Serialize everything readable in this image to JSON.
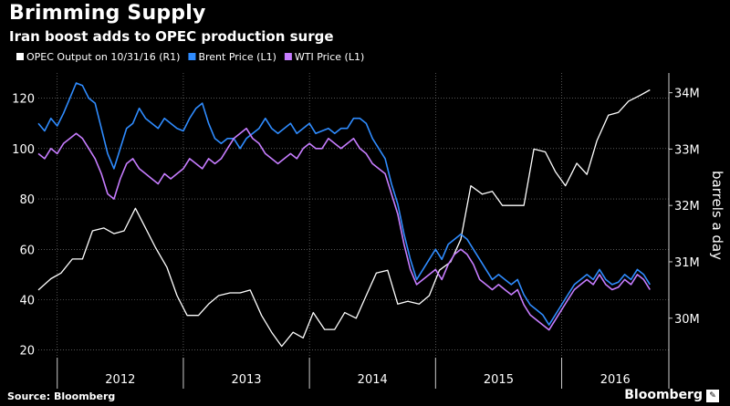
{
  "header": {
    "title": "Brimming Supply",
    "subtitle": "Iran boost adds to OPEC production surge"
  },
  "footer": {
    "source": "Source: Bloomberg",
    "brand": "Bloomberg"
  },
  "colors": {
    "background": "#000000",
    "opec": "#ffffff",
    "brent": "#2f8cff",
    "wti": "#c77dff",
    "grid": "#8a8a8a",
    "text": "#ffffff"
  },
  "chart_data": {
    "type": "line",
    "title": "Brimming Supply",
    "subtitle": "Iran boost adds to OPEC production surge",
    "legend_position": "top-left",
    "grid": true,
    "x_axis": {
      "range": [
        2011.85,
        2016.85
      ],
      "year_labels": [
        "2012",
        "2013",
        "2014",
        "2015",
        "2016"
      ]
    },
    "y_left": {
      "range": [
        17,
        130
      ],
      "ticks": [
        20,
        40,
        60,
        80,
        100,
        120
      ]
    },
    "y_right": {
      "label": "barrels a day",
      "range": [
        29.3,
        34.35
      ],
      "ticks": [
        30,
        31,
        32,
        33,
        34
      ],
      "tick_labels": [
        "30M",
        "31M",
        "32M",
        "33M",
        "34M"
      ]
    },
    "series": [
      {
        "name": "OPEC Output on 10/31/16 (R1)",
        "axis": "right",
        "color": "#ffffff",
        "x": [
          2011.85,
          2011.95,
          2012.03,
          2012.12,
          2012.2,
          2012.28,
          2012.37,
          2012.45,
          2012.53,
          2012.62,
          2012.7,
          2012.78,
          2012.87,
          2012.95,
          2013.03,
          2013.12,
          2013.2,
          2013.28,
          2013.37,
          2013.45,
          2013.53,
          2013.62,
          2013.7,
          2013.78,
          2013.87,
          2013.95,
          2014.03,
          2014.12,
          2014.2,
          2014.28,
          2014.37,
          2014.45,
          2014.53,
          2014.62,
          2014.7,
          2014.78,
          2014.87,
          2014.95,
          2015.03,
          2015.12,
          2015.2,
          2015.28,
          2015.37,
          2015.45,
          2015.53,
          2015.62,
          2015.7,
          2015.78,
          2015.87,
          2015.95,
          2016.03,
          2016.12,
          2016.2,
          2016.28,
          2016.37,
          2016.45,
          2016.53,
          2016.62,
          2016.7
        ],
        "values": [
          30.5,
          30.7,
          30.8,
          31.05,
          31.05,
          31.55,
          31.6,
          31.5,
          31.55,
          31.95,
          31.6,
          31.25,
          30.9,
          30.4,
          30.05,
          30.05,
          30.25,
          30.4,
          30.45,
          30.45,
          30.5,
          30.05,
          29.75,
          29.5,
          29.75,
          29.65,
          30.1,
          29.8,
          29.8,
          30.1,
          30.0,
          30.4,
          30.8,
          30.85,
          30.25,
          30.3,
          30.25,
          30.4,
          30.85,
          31.0,
          31.4,
          32.35,
          32.2,
          32.25,
          32.0,
          32.0,
          32.0,
          33.0,
          32.95,
          32.6,
          32.35,
          32.75,
          32.55,
          33.15,
          33.6,
          33.65,
          33.85,
          33.95,
          34.05
        ]
      },
      {
        "name": "Brent Price (L1)",
        "axis": "left",
        "color": "#2f8cff",
        "x": [
          2011.85,
          2011.9,
          2011.95,
          2012.0,
          2012.05,
          2012.1,
          2012.15,
          2012.2,
          2012.25,
          2012.3,
          2012.35,
          2012.4,
          2012.45,
          2012.5,
          2012.55,
          2012.6,
          2012.65,
          2012.7,
          2012.75,
          2012.8,
          2012.85,
          2012.9,
          2012.95,
          2013.0,
          2013.05,
          2013.1,
          2013.15,
          2013.2,
          2013.25,
          2013.3,
          2013.35,
          2013.4,
          2013.45,
          2013.5,
          2013.55,
          2013.6,
          2013.65,
          2013.7,
          2013.75,
          2013.8,
          2013.85,
          2013.9,
          2013.95,
          2014.0,
          2014.05,
          2014.1,
          2014.15,
          2014.2,
          2014.25,
          2014.3,
          2014.35,
          2014.4,
          2014.45,
          2014.5,
          2014.55,
          2014.6,
          2014.65,
          2014.7,
          2014.75,
          2014.8,
          2014.85,
          2014.9,
          2014.95,
          2015.0,
          2015.05,
          2015.1,
          2015.15,
          2015.2,
          2015.25,
          2015.3,
          2015.35,
          2015.4,
          2015.45,
          2015.5,
          2015.55,
          2015.6,
          2015.65,
          2015.7,
          2015.75,
          2015.8,
          2015.85,
          2015.9,
          2015.95,
          2016.0,
          2016.05,
          2016.1,
          2016.15,
          2016.2,
          2016.25,
          2016.3,
          2016.35,
          2016.4,
          2016.45,
          2016.5,
          2016.55,
          2016.6,
          2016.65,
          2016.7
        ],
        "values": [
          110,
          107,
          112,
          109,
          114,
          120,
          126,
          125,
          120,
          118,
          108,
          98,
          92,
          100,
          108,
          110,
          116,
          112,
          110,
          108,
          112,
          110,
          108,
          107,
          112,
          116,
          118,
          110,
          104,
          102,
          104,
          104,
          100,
          104,
          106,
          108,
          112,
          108,
          106,
          108,
          110,
          106,
          108,
          110,
          106,
          107,
          108,
          106,
          108,
          108,
          112,
          112,
          110,
          104,
          100,
          96,
          86,
          78,
          66,
          56,
          48,
          52,
          56,
          60,
          56,
          62,
          64,
          66,
          64,
          60,
          56,
          52,
          48,
          50,
          48,
          46,
          48,
          42,
          38,
          36,
          34,
          30,
          34,
          38,
          42,
          46,
          48,
          50,
          48,
          52,
          48,
          46,
          47,
          50,
          48,
          52,
          50,
          46
        ]
      },
      {
        "name": "WTI Price (L1)",
        "axis": "left",
        "color": "#c77dff",
        "x": [
          2011.85,
          2011.9,
          2011.95,
          2012.0,
          2012.05,
          2012.1,
          2012.15,
          2012.2,
          2012.25,
          2012.3,
          2012.35,
          2012.4,
          2012.45,
          2012.5,
          2012.55,
          2012.6,
          2012.65,
          2012.7,
          2012.75,
          2012.8,
          2012.85,
          2012.9,
          2012.95,
          2013.0,
          2013.05,
          2013.1,
          2013.15,
          2013.2,
          2013.25,
          2013.3,
          2013.35,
          2013.4,
          2013.45,
          2013.5,
          2013.55,
          2013.6,
          2013.65,
          2013.7,
          2013.75,
          2013.8,
          2013.85,
          2013.9,
          2013.95,
          2014.0,
          2014.05,
          2014.1,
          2014.15,
          2014.2,
          2014.25,
          2014.3,
          2014.35,
          2014.4,
          2014.45,
          2014.5,
          2014.55,
          2014.6,
          2014.65,
          2014.7,
          2014.75,
          2014.8,
          2014.85,
          2014.9,
          2014.95,
          2015.0,
          2015.05,
          2015.1,
          2015.15,
          2015.2,
          2015.25,
          2015.3,
          2015.35,
          2015.4,
          2015.45,
          2015.5,
          2015.55,
          2015.6,
          2015.65,
          2015.7,
          2015.75,
          2015.8,
          2015.85,
          2015.9,
          2015.95,
          2016.0,
          2016.05,
          2016.1,
          2016.15,
          2016.2,
          2016.25,
          2016.3,
          2016.35,
          2016.4,
          2016.45,
          2016.5,
          2016.55,
          2016.6,
          2016.65,
          2016.7
        ],
        "values": [
          98,
          96,
          100,
          98,
          102,
          104,
          106,
          104,
          100,
          96,
          90,
          82,
          80,
          88,
          94,
          96,
          92,
          90,
          88,
          86,
          90,
          88,
          90,
          92,
          96,
          94,
          92,
          96,
          94,
          96,
          100,
          104,
          106,
          108,
          104,
          102,
          98,
          96,
          94,
          96,
          98,
          96,
          100,
          102,
          100,
          100,
          104,
          102,
          100,
          102,
          104,
          100,
          98,
          94,
          92,
          90,
          82,
          74,
          62,
          52,
          46,
          48,
          50,
          52,
          48,
          54,
          58,
          60,
          58,
          54,
          48,
          46,
          44,
          46,
          44,
          42,
          44,
          38,
          34,
          32,
          30,
          28,
          32,
          36,
          40,
          44,
          46,
          48,
          46,
          50,
          46,
          44,
          45,
          48,
          46,
          50,
          48,
          44
        ]
      }
    ]
  }
}
